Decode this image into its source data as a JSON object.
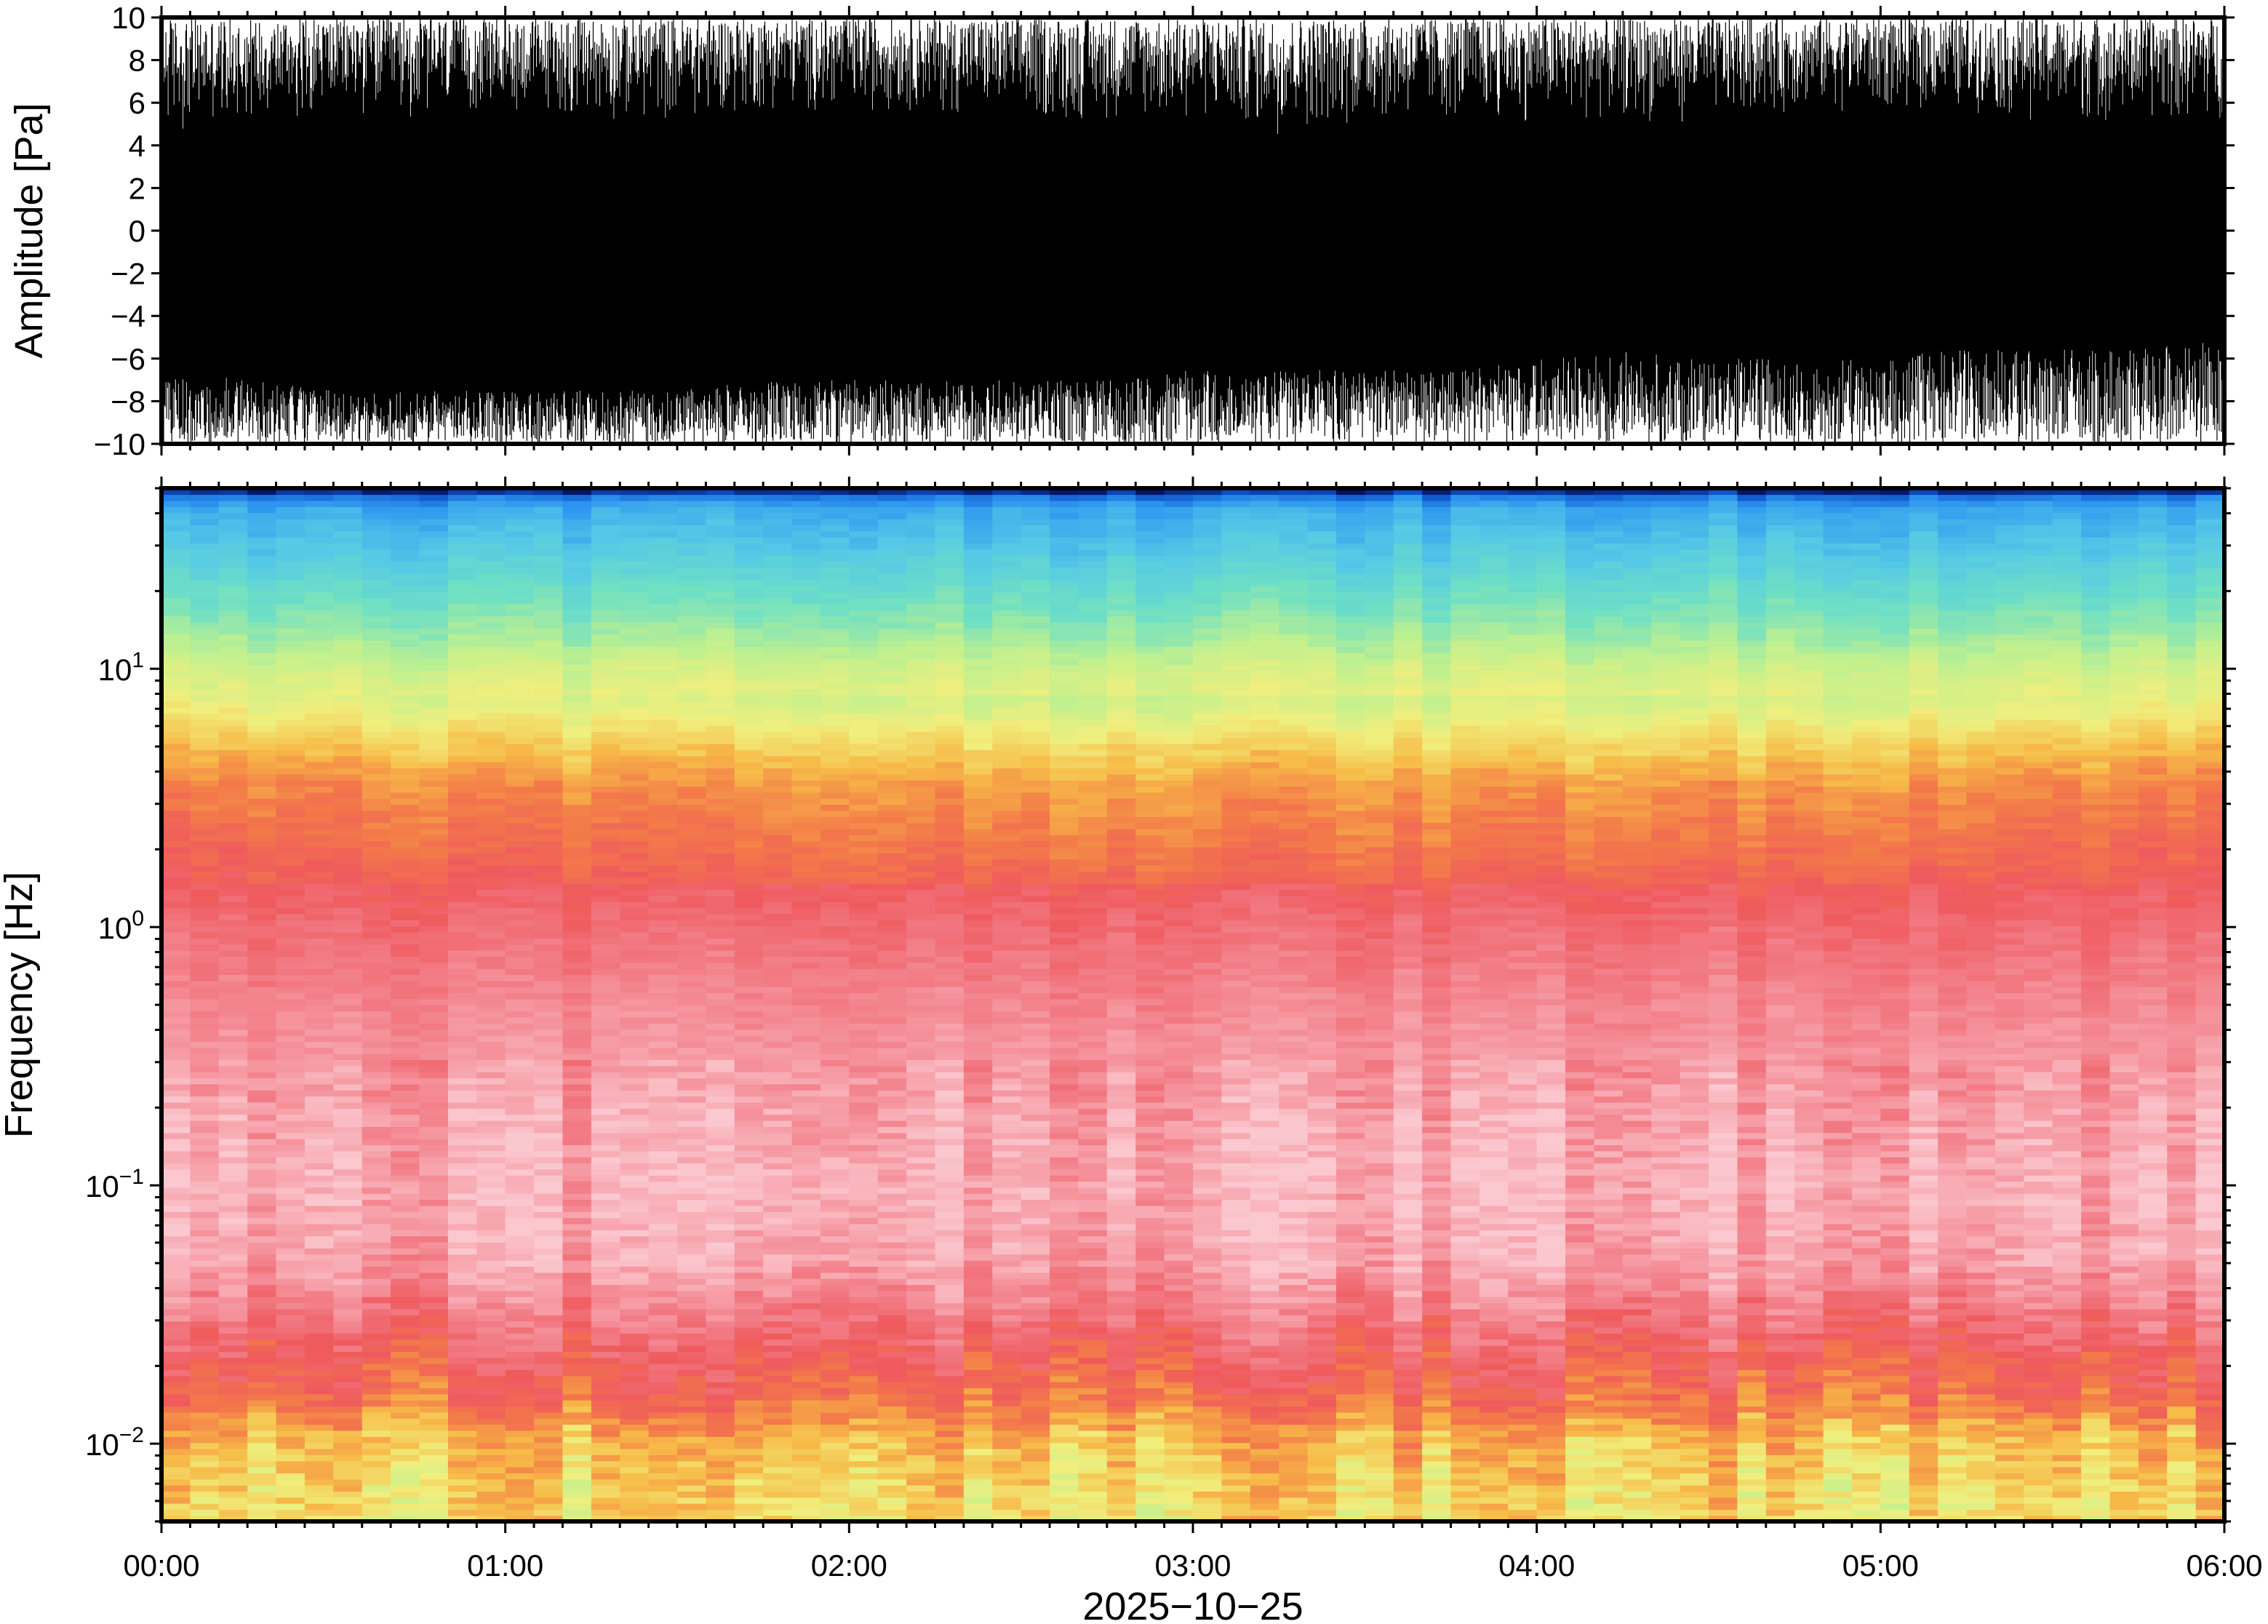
{
  "chart_data": [
    {
      "type": "line",
      "panel": "waveform",
      "ylabel": "Amplitude [Pa]",
      "ylim": [
        -10,
        10
      ],
      "yticks": [
        10,
        8,
        6,
        4,
        2,
        0,
        -2,
        -4,
        -6,
        -8,
        -10
      ],
      "ytick_labels": [
        "10",
        "8",
        "6",
        "4",
        "2",
        "0",
        "−2",
        "−4",
        "−6",
        "−8",
        "−10"
      ],
      "xlim": [
        "00:00",
        "06:00"
      ],
      "trace_color": "#000000",
      "series": [
        {
          "x_hours": [
            0,
            0.25,
            0.5,
            0.75,
            1.0,
            1.25,
            1.5,
            1.75,
            2.0,
            2.25,
            2.5,
            2.75,
            3.0,
            3.25,
            3.5,
            3.75,
            4.0,
            4.25,
            4.5,
            4.75,
            5.0,
            5.25,
            5.5,
            5.75,
            6.0
          ],
          "upper_envelope": [
            10,
            10,
            10,
            10,
            10,
            10,
            10,
            10,
            10,
            10,
            10,
            10,
            10,
            10,
            10,
            10,
            10,
            10,
            10,
            10,
            10,
            10,
            10,
            10,
            10
          ],
          "lower_envelope": [
            -10,
            -10,
            -10,
            -10,
            -10,
            -10,
            -10,
            -10,
            -10,
            -10,
            -10,
            -10,
            -10,
            -10,
            -10,
            -10,
            -10,
            -10,
            -10,
            -10,
            -10,
            -10,
            -10,
            -10,
            -10
          ],
          "dense_upper": [
            4.5,
            5.0,
            5.5,
            5.0,
            5.5,
            5.0,
            5.0,
            5.5,
            5.5,
            5.5,
            5.0,
            5.0,
            5.0,
            4.5,
            5.0,
            5.0,
            5.0,
            5.0,
            5.0,
            5.5,
            5.5,
            5.5,
            5.0,
            5.0,
            5.0
          ],
          "dense_lower": [
            -6.5,
            -7.0,
            -7.5,
            -7.5,
            -7.5,
            -7.5,
            -7.5,
            -7.0,
            -7.0,
            -7.0,
            -7.0,
            -7.0,
            -6.5,
            -6.5,
            -6.5,
            -6.5,
            -6.0,
            -5.5,
            -6.0,
            -6.0,
            -6.0,
            -5.5,
            -5.5,
            -5.5,
            -5.0
          ]
        }
      ]
    },
    {
      "type": "heatmap",
      "panel": "spectrogram",
      "ylabel": "Frequency [Hz]",
      "xlabel": "2025−10−25",
      "yscale": "log",
      "ylim": [
        0.005,
        50
      ],
      "yticks": [
        {
          "base": "10",
          "exp": "1",
          "value": 10
        },
        {
          "base": "10",
          "exp": "0",
          "value": 1
        },
        {
          "base": "10",
          "exp": "−1",
          "value": 0.1
        },
        {
          "base": "10",
          "exp": "−2",
          "value": 0.01
        }
      ],
      "xticks": [
        "00:00",
        "01:00",
        "02:00",
        "03:00",
        "04:00",
        "05:00",
        "06:00"
      ],
      "xlim": [
        "00:00",
        "06:00"
      ],
      "colormap": [
        "#00004a",
        "#0c4fc7",
        "#2e97f0",
        "#55c9e6",
        "#6fe0c4",
        "#bff08f",
        "#f0ef7d",
        "#f7bb48",
        "#f37a49",
        "#ef5a5d",
        "#f27b85",
        "#f7a4ad",
        "#fbc8cf"
      ],
      "frequency_profile": [
        {
          "freq_hz": 50,
          "level": 0.0
        },
        {
          "freq_hz": 47,
          "level": 0.12
        },
        {
          "freq_hz": 42,
          "level": 0.2
        },
        {
          "freq_hz": 30,
          "level": 0.25
        },
        {
          "freq_hz": 20,
          "level": 0.32
        },
        {
          "freq_hz": 14,
          "level": 0.38
        },
        {
          "freq_hz": 10,
          "level": 0.45
        },
        {
          "freq_hz": 7,
          "level": 0.5
        },
        {
          "freq_hz": 5,
          "level": 0.58
        },
        {
          "freq_hz": 3.5,
          "level": 0.66
        },
        {
          "freq_hz": 2,
          "level": 0.72
        },
        {
          "freq_hz": 1,
          "level": 0.8
        },
        {
          "freq_hz": 0.5,
          "level": 0.86
        },
        {
          "freq_hz": 0.2,
          "level": 0.92
        },
        {
          "freq_hz": 0.1,
          "level": 0.95
        },
        {
          "freq_hz": 0.05,
          "level": 0.92
        },
        {
          "freq_hz": 0.03,
          "level": 0.82
        },
        {
          "freq_hz": 0.02,
          "level": 0.74
        },
        {
          "freq_hz": 0.015,
          "level": 0.7
        },
        {
          "freq_hz": 0.011,
          "level": 0.6
        },
        {
          "freq_hz": 0.008,
          "level": 0.56
        },
        {
          "freq_hz": 0.005,
          "level": 0.53
        }
      ],
      "time_columns": 72
    }
  ]
}
